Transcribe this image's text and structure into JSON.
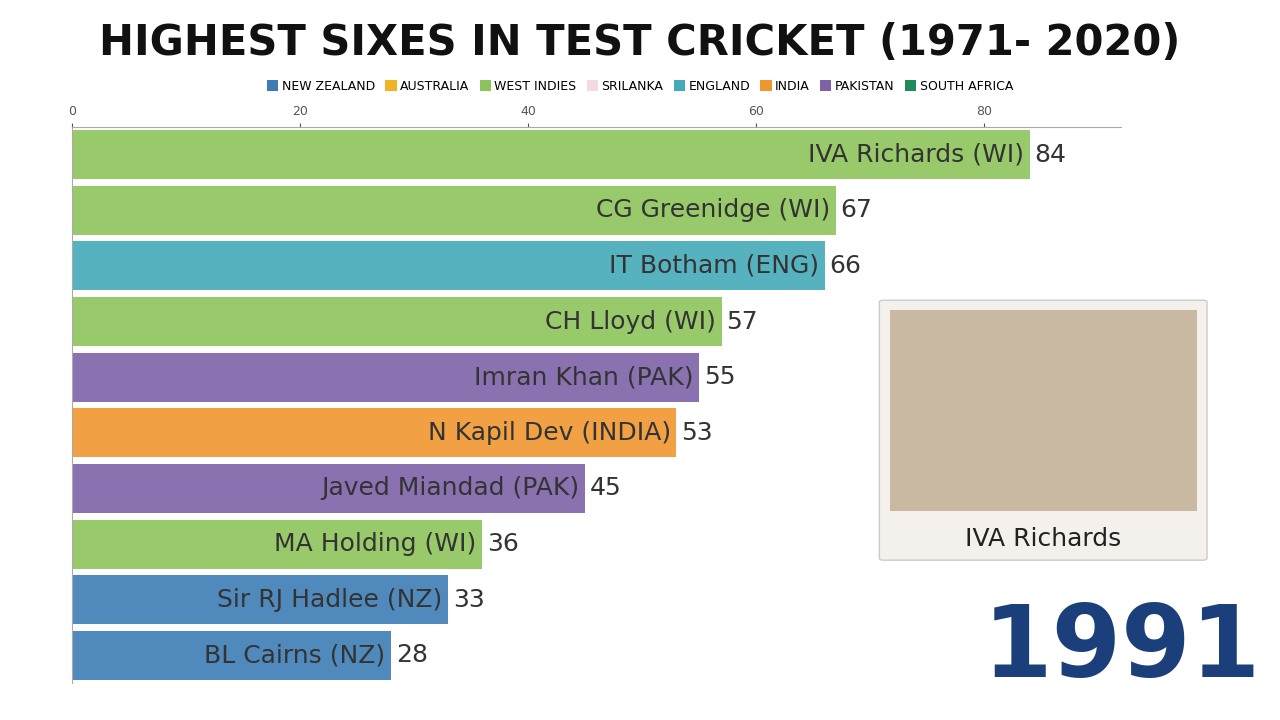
{
  "chart_data": {
    "type": "bar",
    "orientation": "horizontal",
    "title": "HIGHEST SIXES IN TEST CRICKET (1971- 2020)",
    "categories": [
      "IVA Richards (WI)",
      "CG Greenidge (WI)",
      "IT Botham (ENG)",
      "CH Lloyd (WI)",
      "Imran Khan (PAK)",
      "N Kapil Dev (INDIA)",
      "Javed Miandad (PAK)",
      "MA Holding (WI)",
      "Sir RJ Hadlee (NZ)",
      "BL Cairns (NZ)"
    ],
    "series": [
      {
        "name": "NEW ZEALAND",
        "color": "#3d7db5",
        "values": [
          null,
          null,
          null,
          null,
          null,
          null,
          null,
          null,
          33,
          28
        ]
      },
      {
        "name": "AUSTRALIA",
        "color": "#f0b323",
        "values": [
          null,
          null,
          null,
          null,
          null,
          null,
          null,
          null,
          null,
          null
        ]
      },
      {
        "name": "WEST INDIES",
        "color": "#8dc35a",
        "values": [
          84,
          67,
          null,
          57,
          null,
          null,
          null,
          36,
          null,
          null
        ]
      },
      {
        "name": "SRILANKA",
        "color": "#f2d9e3",
        "values": [
          null,
          null,
          null,
          null,
          null,
          null,
          null,
          null,
          null,
          null
        ]
      },
      {
        "name": "ENGLAND",
        "color": "#45aab8",
        "values": [
          null,
          null,
          66,
          null,
          null,
          null,
          null,
          null,
          null,
          null
        ]
      },
      {
        "name": "INDIA",
        "color": "#f0962e",
        "values": [
          null,
          null,
          null,
          null,
          null,
          53,
          null,
          null,
          null,
          null
        ]
      },
      {
        "name": "PAKISTAN",
        "color": "#7d62a8",
        "values": [
          null,
          null,
          null,
          null,
          55,
          null,
          45,
          null,
          null,
          null
        ]
      },
      {
        "name": "SOUTH AFRICA",
        "color": "#1f8a5c",
        "values": [
          null,
          null,
          null,
          null,
          null,
          null,
          null,
          null,
          null,
          null
        ]
      }
    ],
    "xlim": [
      0,
      92
    ],
    "xticks": [
      0,
      20,
      40,
      60,
      80
    ],
    "data_labels": true,
    "legend": "upper center",
    "tick_labels": "x",
    "annotations": [
      {
        "text": "IVA Richards"
      },
      {
        "text": "1991"
      }
    ]
  }
}
